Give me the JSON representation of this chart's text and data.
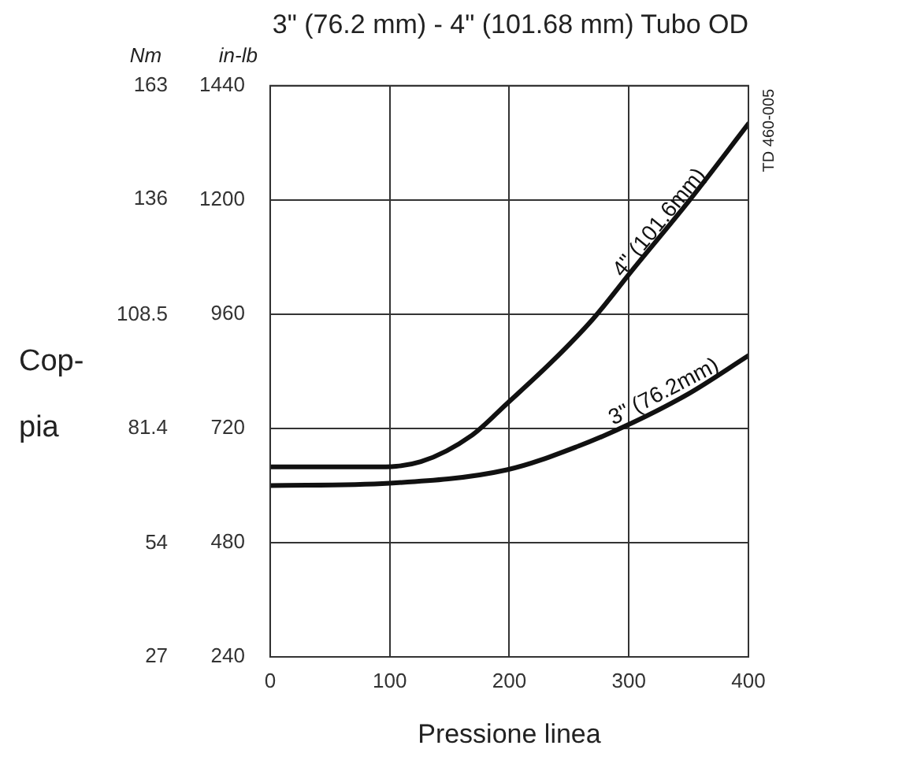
{
  "chart_data": {
    "type": "line",
    "title": "3\" (76.2 mm) - 4\" (101.68 mm) Tubo OD",
    "xlabel": "Pressione linea",
    "ylabel": "in-lb",
    "y2label": "Nm",
    "annotations": [
      "Cop- pia",
      "TD 460-005"
    ],
    "xlim": [
      0,
      400
    ],
    "xticks": [
      0,
      100,
      200,
      300,
      400
    ],
    "ylim": [
      240,
      1440
    ],
    "yticks": [
      240,
      480,
      720,
      960,
      1200,
      1440
    ],
    "y2lim": [
      27,
      163
    ],
    "y2ticks": [
      27,
      54,
      81.4,
      108.5,
      136,
      163
    ],
    "grid": true,
    "legend": false,
    "marker": "none",
    "line_style": "solid",
    "series": [
      {
        "name": "4\" (101.6mm)",
        "color": "#111111",
        "x": [
          0,
          85,
          126,
          169,
          198,
          236,
          270,
          304,
          350,
          400
        ],
        "values": [
          639,
          639,
          650,
          706,
          772,
          861,
          950,
          1056,
          1197,
          1360
        ]
      },
      {
        "name": "3\" (76.2mm)",
        "color": "#111111",
        "x": [
          0,
          100,
          198,
          258,
          304,
          350,
          400
        ],
        "values": [
          600,
          605,
          633,
          683,
          733,
          793,
          873
        ]
      }
    ]
  }
}
